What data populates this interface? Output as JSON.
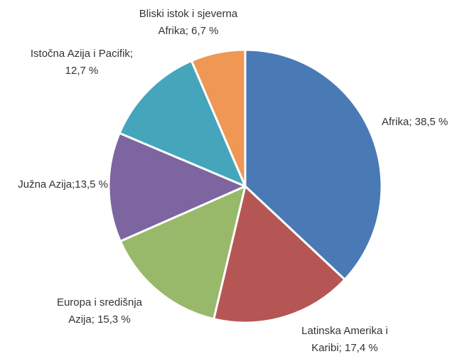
{
  "chart_data": {
    "type": "pie",
    "values": [
      38.5,
      17.4,
      15.3,
      13.5,
      12.7,
      6.7
    ],
    "value_labels": [
      [
        "Afrika; 38,5 %"
      ],
      [
        "Latinska Amerika i",
        "Karibi; 17,4 %"
      ],
      [
        "Europa i središnja",
        "Azija; 15,3 %"
      ],
      [
        "Južna Azija;13,5 %"
      ],
      [
        "Istočna Azija i Pacifik;",
        "12,7 %"
      ],
      [
        "Bliski istok i sjeverna",
        "Afrika; 6,7 %"
      ]
    ],
    "colors": [
      "#4a7ab5",
      "#b55654",
      "#98b96a",
      "#7d65a0",
      "#45a5bb",
      "#ef9755"
    ]
  }
}
